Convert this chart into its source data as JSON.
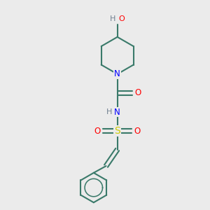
{
  "bg_color": "#ebebeb",
  "C": "#3a7a6a",
  "N": "#0000ff",
  "O": "#ff0000",
  "S": "#cccc00",
  "H": "#708090",
  "bond_color": "#3a7a6a",
  "lw": 1.5,
  "figsize": [
    3.0,
    3.0
  ],
  "dpi": 100,
  "xlim": [
    0,
    10
  ],
  "ylim": [
    0,
    10
  ]
}
